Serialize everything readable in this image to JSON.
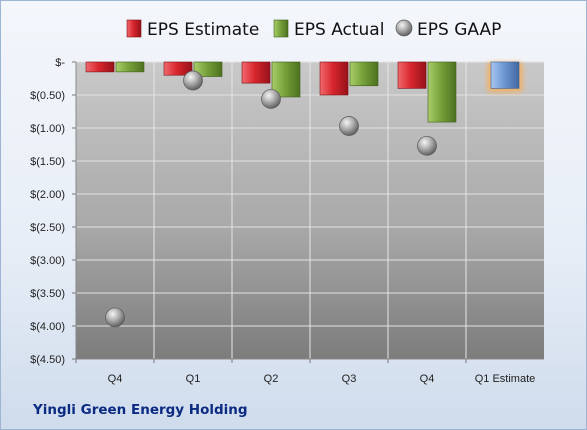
{
  "company_name": "Yingli Green Energy Holding",
  "colors": {
    "estimate": "#d8262e",
    "actual": "#77a23a",
    "gaap": "#9a9a9a",
    "next_estimate": "#6f9ad6",
    "next_estimate_glow": "#f5b062",
    "company_text": "#0b2a82"
  },
  "chart_data": {
    "type": "bar",
    "categories": [
      "Q4",
      "Q1",
      "Q2",
      "Q3",
      "Q4",
      "Q1 Estimate"
    ],
    "series": [
      {
        "name": "EPS Estimate",
        "values": [
          -0.15,
          -0.2,
          -0.32,
          -0.5,
          -0.4,
          null
        ]
      },
      {
        "name": "EPS Actual",
        "values": [
          -0.15,
          -0.22,
          -0.53,
          -0.36,
          -0.91,
          -0.4
        ]
      },
      {
        "name": "EPS GAAP",
        "values": [
          -3.87,
          -0.28,
          -0.56,
          -0.97,
          -1.27,
          null
        ]
      }
    ],
    "ylim": [
      -4.5,
      0
    ],
    "yticks": [
      0,
      -0.5,
      -1.0,
      -1.5,
      -2.0,
      -2.5,
      -3.0,
      -3.5,
      -4.0,
      -4.5
    ],
    "ytick_labels": [
      "$-",
      "$(0.50)",
      "$(1.00)",
      "$(1.50)",
      "$(2.00)",
      "$(2.50)",
      "$(3.00)",
      "$(3.50)",
      "$(4.00)",
      "$(4.50)"
    ],
    "legend": [
      "EPS Estimate",
      "EPS Actual",
      "EPS GAAP"
    ],
    "legend_position": "top",
    "grid": true
  }
}
